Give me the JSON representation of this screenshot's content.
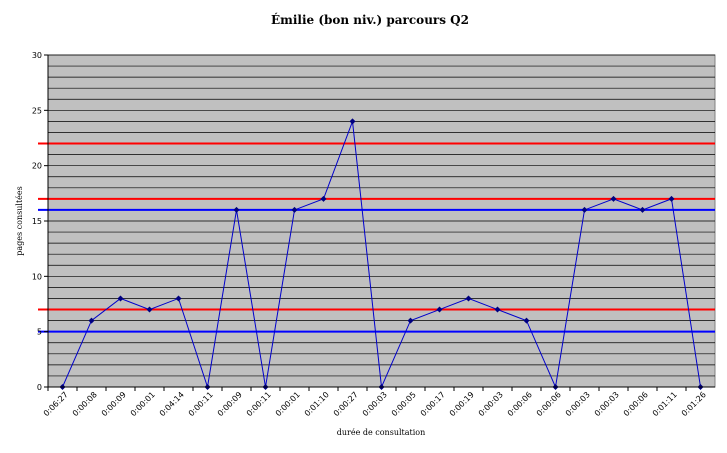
{
  "chart_data": {
    "type": "line",
    "title": "Émilie (bon niv.) parcours Q2",
    "xlabel": "durée de consultation",
    "ylabel": "pages consultées",
    "ylim": [
      0,
      30
    ],
    "yticks": [
      0,
      5,
      10,
      15,
      20,
      25,
      30
    ],
    "minor_grid_step": 1,
    "grid": true,
    "categories": [
      "0:06:27",
      "0:00:08",
      "0:00:09",
      "0:00:01",
      "0:04:14",
      "0:00:11",
      "0:00:09",
      "0:00:11",
      "0:00:01",
      "0:01:10",
      "0:00:27",
      "0:00:03",
      "0:00:05",
      "0:00:17",
      "0:00:19",
      "0:00:03",
      "0:00:06",
      "0:00:06",
      "0:00:03",
      "0:00:03",
      "0:00:06",
      "0:01:11",
      "0:01:26"
    ],
    "series": [
      {
        "values": [
          0,
          6,
          8,
          7,
          8,
          0,
          16,
          0,
          16,
          17,
          24,
          0,
          6,
          7,
          8,
          7,
          6,
          0,
          16,
          17,
          16,
          17,
          0
        ]
      }
    ],
    "reference_lines": [
      {
        "color": "red",
        "y": 22
      },
      {
        "color": "red",
        "y": 17
      },
      {
        "color": "blue",
        "y": 16
      },
      {
        "color": "red",
        "y": 7
      },
      {
        "color": "blue",
        "y": 5
      }
    ],
    "colors": {
      "plot_bg": "#c0c0c0",
      "grid": "#000000",
      "line": "#0000cc",
      "marker": "#000080",
      "red_line": "#ff0000",
      "blue_line": "#0000ff"
    }
  }
}
